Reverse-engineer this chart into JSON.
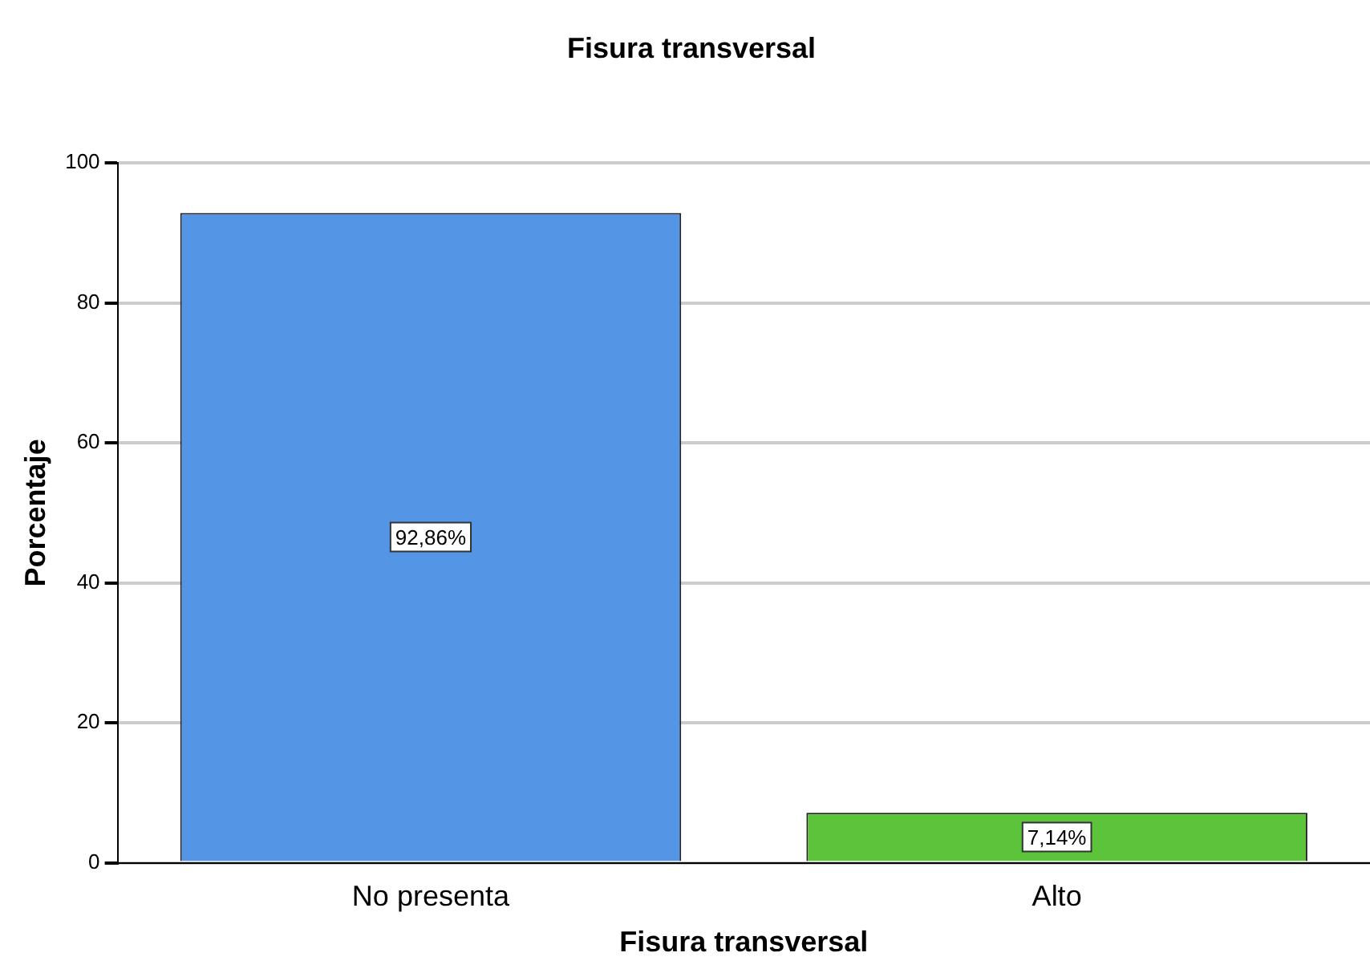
{
  "chart_data": {
    "type": "bar",
    "title": "Fisura transversal",
    "xlabel": "Fisura transversal",
    "ylabel": "Porcentaje",
    "categories": [
      "No presenta",
      "Alto"
    ],
    "values": [
      92.86,
      7.14
    ],
    "colors": [
      "#5595e5",
      "#5bc43a"
    ],
    "value_labels": [
      "92,86%",
      "7,14%"
    ],
    "ylim": [
      0,
      100
    ],
    "yticks": [
      0,
      20,
      40,
      60,
      80,
      100
    ],
    "grid": "y",
    "legend": false
  }
}
